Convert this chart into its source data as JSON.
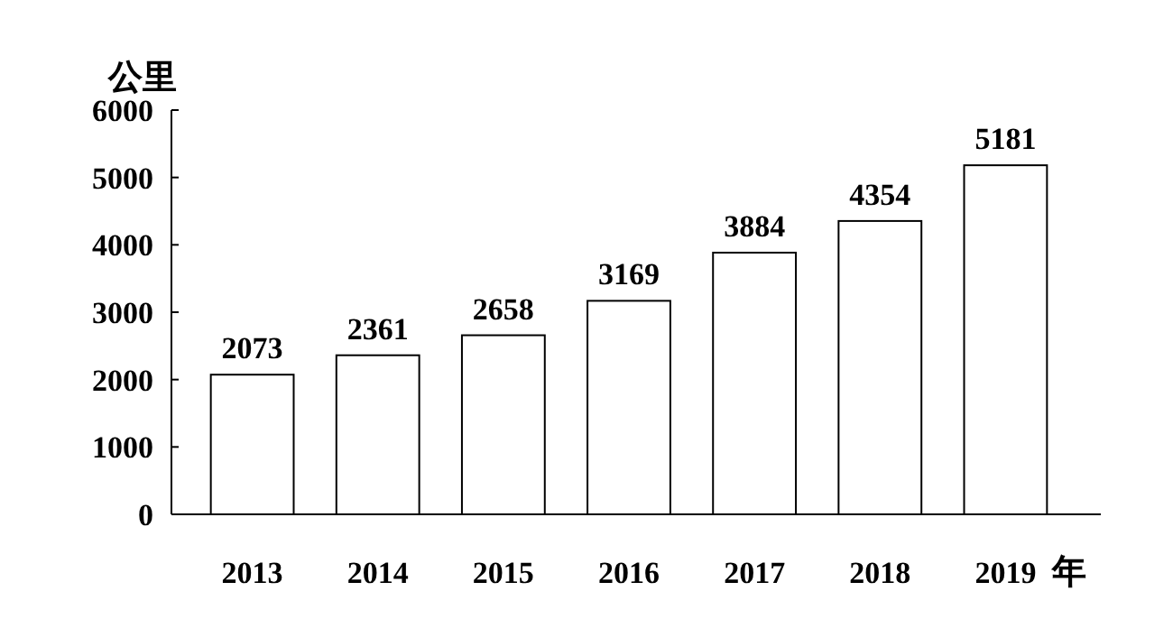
{
  "chart_data": {
    "type": "bar",
    "ylabel": "公里",
    "xlabel": "年",
    "categories": [
      "2013",
      "2014",
      "2015",
      "2016",
      "2017",
      "2018",
      "2019"
    ],
    "values": [
      2073,
      2361,
      2658,
      3169,
      3884,
      4354,
      5181
    ],
    "color": "#ffffff",
    "data_labels": true,
    "grid": false,
    "ylim": [
      0,
      6000
    ],
    "yticks": [
      0,
      1000,
      2000,
      3000,
      4000,
      5000,
      6000
    ]
  }
}
